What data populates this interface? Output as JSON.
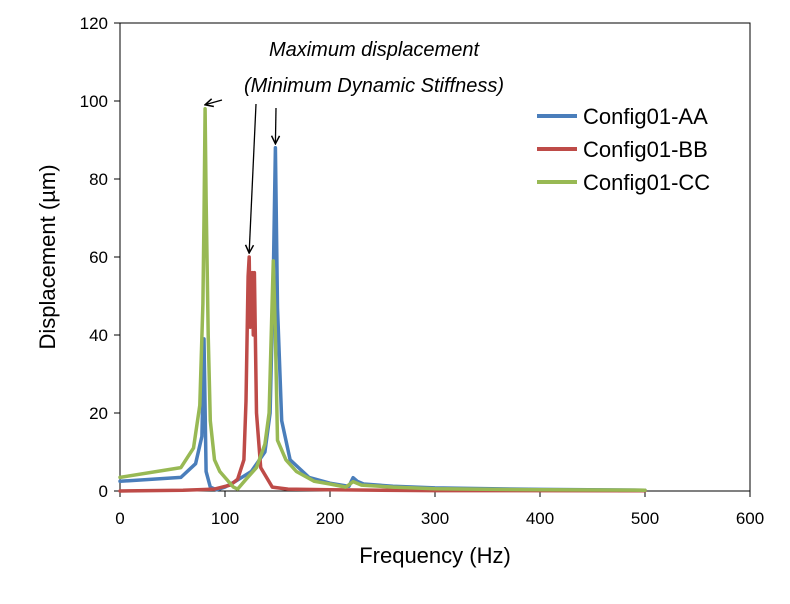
{
  "chart_data": {
    "type": "line",
    "title": "",
    "xlabel": "Frequency (Hz)",
    "ylabel": "Displacement (µm)",
    "xlim": [
      0,
      600
    ],
    "ylim": [
      0,
      120
    ],
    "xticks": [
      0,
      100,
      200,
      300,
      400,
      500,
      600
    ],
    "yticks": [
      0,
      20,
      40,
      60,
      80,
      100,
      120
    ],
    "grid": false,
    "legend_position": "top-right",
    "annotation": {
      "lines": [
        "Maximum displacement",
        "(Minimum Dynamic Stiffness)"
      ],
      "arrow_targets": [
        [
          81,
          98
        ],
        [
          123,
          60
        ],
        [
          148,
          88
        ]
      ]
    },
    "series": [
      {
        "name": "Config01-AA",
        "color": "#4a7ebb",
        "points": [
          [
            0,
            2.5
          ],
          [
            58,
            3.5
          ],
          [
            72,
            7
          ],
          [
            78,
            14
          ],
          [
            80,
            39
          ],
          [
            82,
            5
          ],
          [
            86,
            1
          ],
          [
            92,
            0.3
          ],
          [
            100,
            1
          ],
          [
            110,
            2.5
          ],
          [
            125,
            5
          ],
          [
            138,
            10
          ],
          [
            143,
            20
          ],
          [
            146,
            55
          ],
          [
            148,
            88
          ],
          [
            150,
            47
          ],
          [
            154,
            18
          ],
          [
            162,
            8
          ],
          [
            170,
            6
          ],
          [
            180,
            3.5
          ],
          [
            200,
            2
          ],
          [
            218,
            1.2
          ],
          [
            222,
            3.4
          ],
          [
            226,
            2.5
          ],
          [
            232,
            1.8
          ],
          [
            260,
            1.2
          ],
          [
            300,
            0.8
          ],
          [
            400,
            0.4
          ],
          [
            500,
            0.2
          ]
        ]
      },
      {
        "name": "Config01-BB",
        "color": "#be4b48",
        "points": [
          [
            0,
            0
          ],
          [
            60,
            0.2
          ],
          [
            90,
            0.5
          ],
          [
            105,
            1.5
          ],
          [
            112,
            3
          ],
          [
            118,
            8
          ],
          [
            120,
            23
          ],
          [
            122,
            55
          ],
          [
            123,
            60
          ],
          [
            124,
            42
          ],
          [
            126,
            56
          ],
          [
            127,
            40
          ],
          [
            128,
            56
          ],
          [
            130,
            20
          ],
          [
            134,
            6
          ],
          [
            145,
            1
          ],
          [
            160,
            0.5
          ],
          [
            200,
            0.3
          ],
          [
            300,
            0.1
          ],
          [
            500,
            0.05
          ]
        ]
      },
      {
        "name": "Config01-CC",
        "color": "#98b954",
        "points": [
          [
            0,
            3.5
          ],
          [
            58,
            6
          ],
          [
            70,
            11
          ],
          [
            76,
            22
          ],
          [
            79,
            48
          ],
          [
            80,
            70
          ],
          [
            81,
            98
          ],
          [
            82,
            75
          ],
          [
            84,
            40
          ],
          [
            86,
            18
          ],
          [
            90,
            8
          ],
          [
            95,
            5
          ],
          [
            108,
            1
          ],
          [
            112,
            0.5
          ],
          [
            120,
            3
          ],
          [
            130,
            6
          ],
          [
            138,
            12
          ],
          [
            142,
            20
          ],
          [
            145,
            50
          ],
          [
            146,
            59
          ],
          [
            148,
            40
          ],
          [
            150,
            13
          ],
          [
            158,
            8
          ],
          [
            168,
            5
          ],
          [
            185,
            2.5
          ],
          [
            200,
            1.8
          ],
          [
            215,
            1
          ],
          [
            222,
            2.4
          ],
          [
            230,
            1.5
          ],
          [
            260,
            1
          ],
          [
            300,
            0.6
          ],
          [
            400,
            0.3
          ],
          [
            500,
            0.2
          ]
        ]
      }
    ]
  }
}
